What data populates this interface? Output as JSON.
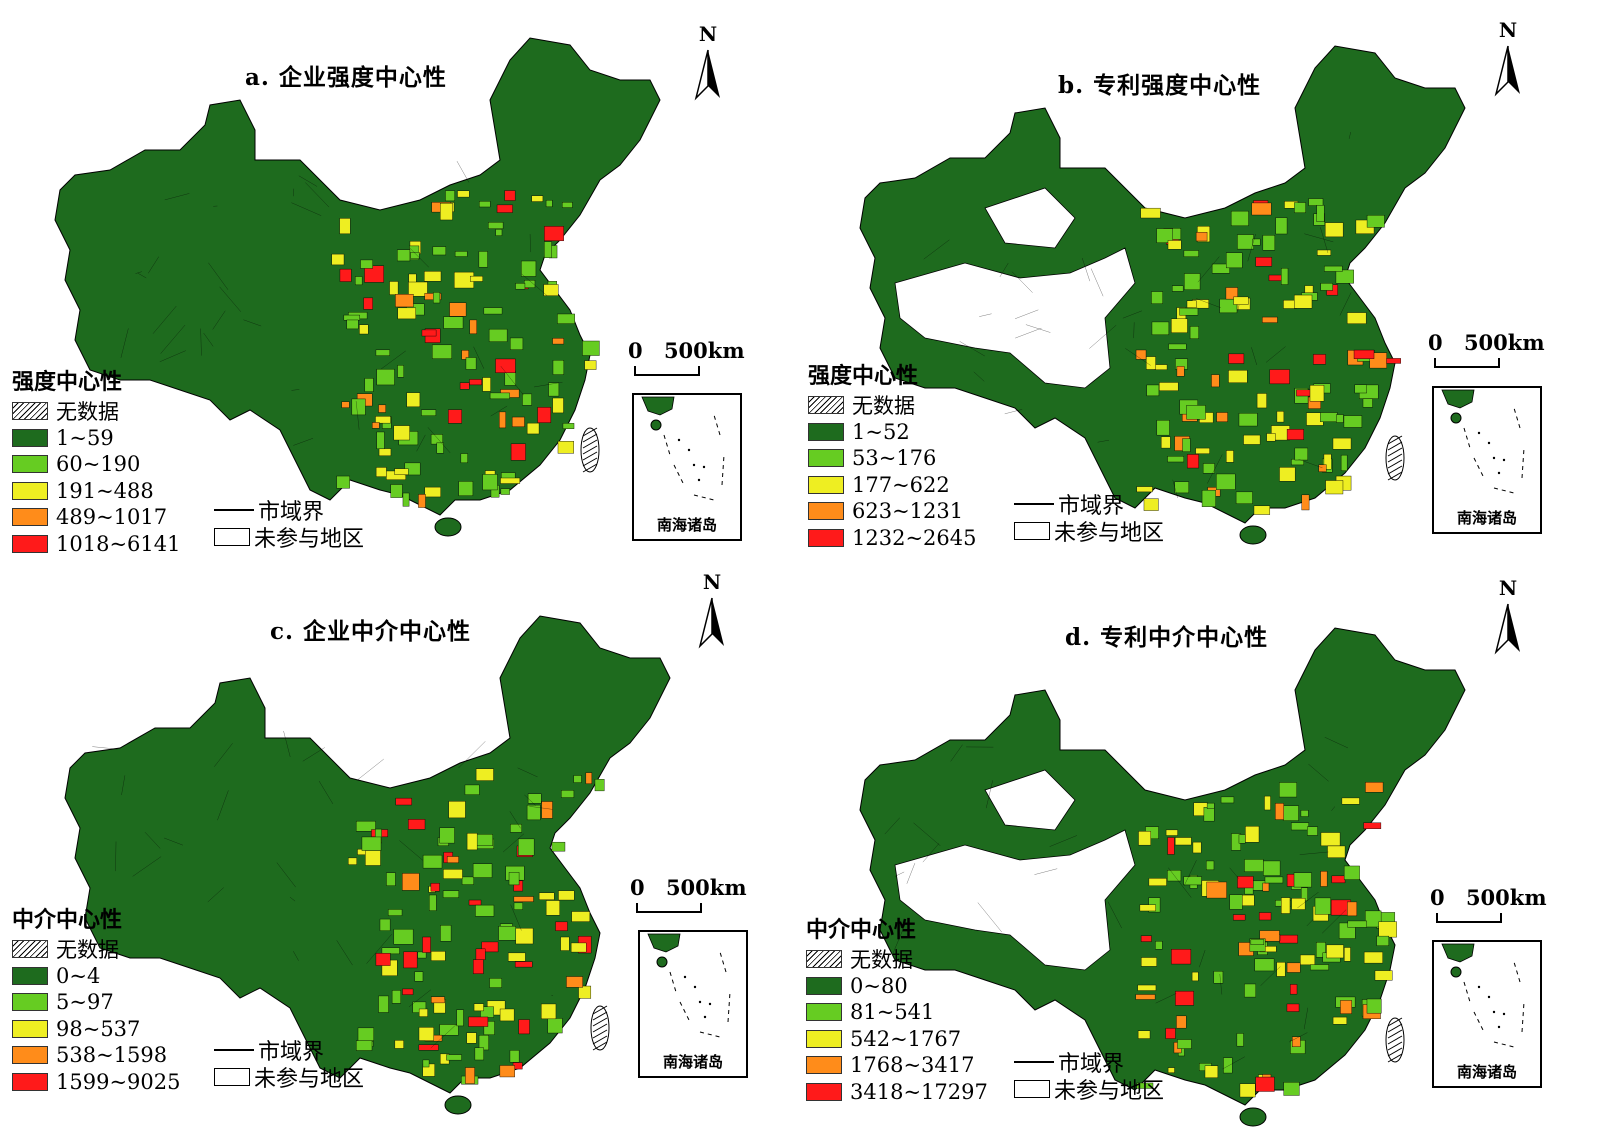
{
  "colors": {
    "no_data": "hatch",
    "c1": "#1e6b1e",
    "c2": "#66cc22",
    "c3": "#eeee22",
    "c4": "#ff8c1a",
    "c5": "#ff1a1a",
    "non_participating": "#ffffff"
  },
  "common": {
    "north": "N",
    "scale_zero": "0",
    "scale_dist": "500km",
    "inset_label": "南海诸岛",
    "boundary_label": "市域界",
    "nonpart_label": "未参与地区",
    "no_data_label": "无数据"
  },
  "panels": [
    {
      "title": "a. 企业强度中心性",
      "legend_title": "强度中心性",
      "classes": [
        "1~59",
        "60~190",
        "191~488",
        "489~1017",
        "1018~6141"
      ],
      "has_nonparticipating_area": false
    },
    {
      "title": "b. 专利强度中心性",
      "legend_title": "强度中心性",
      "classes": [
        "1~52",
        "53~176",
        "177~622",
        "623~1231",
        "1232~2645"
      ],
      "has_nonparticipating_area": true
    },
    {
      "title": "c. 企业中介中心性",
      "legend_title": "中介中心性",
      "classes": [
        "0~4",
        "5~97",
        "98~537",
        "538~1598",
        "1599~9025"
      ],
      "has_nonparticipating_area": false
    },
    {
      "title": "d. 专利中介中心性",
      "legend_title": "中介中心性",
      "classes": [
        "0~80",
        "81~541",
        "542~1767",
        "1768~3417",
        "3418~17297"
      ],
      "has_nonparticipating_area": true
    }
  ]
}
